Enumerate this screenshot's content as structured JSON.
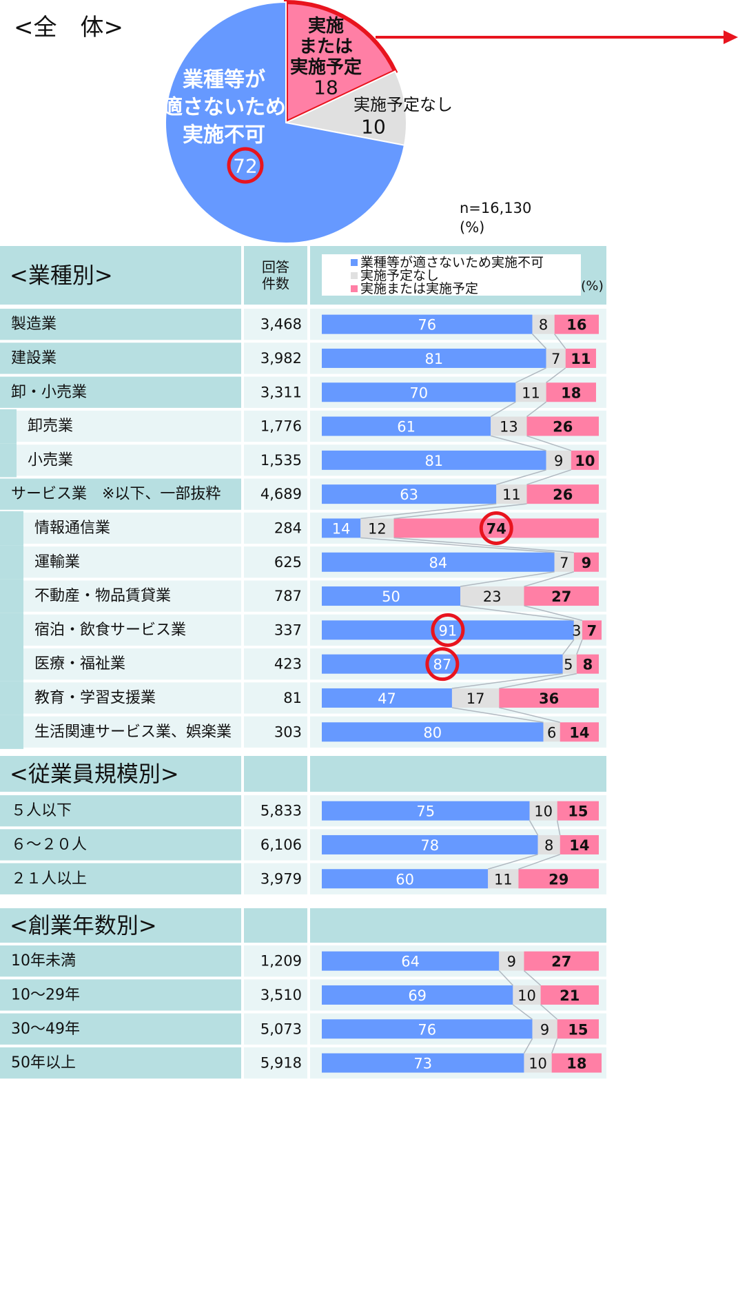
{
  "colors": {
    "blue": "#6699ff",
    "gray": "#e0e0e0",
    "pink": "#ff7fa5",
    "highlight": "#e8141e",
    "band": "#b7dfe1",
    "band_light": "#e9f5f6",
    "connector": "#b0b8c0"
  },
  "overall": {
    "title": "<全　体>",
    "n_label": "n=16,130",
    "unit": "(%)",
    "slices": [
      {
        "label": "業種等が\n適さないため\n実施不可",
        "value": 72,
        "color_key": "blue",
        "circled": true
      },
      {
        "label": "実施予定なし",
        "value": 10,
        "color_key": "gray",
        "circled": false
      },
      {
        "label": "実施\nまたは\n実施予定",
        "value": 18,
        "color_key": "pink",
        "circled": false
      }
    ]
  },
  "legend": {
    "items": [
      {
        "label": "業種等が適さないため実施不可",
        "color_key": "blue"
      },
      {
        "label": "実施予定なし",
        "color_key": "gray"
      },
      {
        "label": "実施または実施予定",
        "color_key": "pink"
      }
    ],
    "unit": "(%)"
  },
  "chart_data": {
    "type": "bar",
    "stacked": true,
    "orientation": "horizontal",
    "series": [
      {
        "name": "業種等が適さないため実施不可"
      },
      {
        "name": "実施予定なし"
      },
      {
        "name": "実施または実施予定"
      }
    ],
    "xlim": [
      0,
      100
    ],
    "sections": [
      {
        "title": "<業種別>",
        "count_header": "回答\n件数",
        "rows": [
          {
            "label": "製造業",
            "count": "3,468",
            "values": [
              76,
              8,
              16
            ],
            "indent": 0
          },
          {
            "label": "建設業",
            "count": "3,982",
            "values": [
              81,
              7,
              11
            ],
            "indent": 0
          },
          {
            "label": "卸・小売業",
            "count": "3,311",
            "values": [
              70,
              11,
              18
            ],
            "indent": 0
          },
          {
            "label": "卸売業",
            "count": "1,776",
            "values": [
              61,
              13,
              26
            ],
            "indent": 1
          },
          {
            "label": "小売業",
            "count": "1,535",
            "values": [
              81,
              9,
              10
            ],
            "indent": 1
          },
          {
            "label": "サービス業　※以下、一部抜粋",
            "count": "4,689",
            "values": [
              63,
              11,
              26
            ],
            "indent": 0
          },
          {
            "label": "情報通信業",
            "count": "284",
            "values": [
              14,
              12,
              74
            ],
            "indent": 2,
            "circle": 2
          },
          {
            "label": "運輸業",
            "count": "625",
            "values": [
              84,
              7,
              9
            ],
            "indent": 2
          },
          {
            "label": "不動産・物品賃貸業",
            "count": "787",
            "values": [
              50,
              23,
              27
            ],
            "indent": 2
          },
          {
            "label": "宿泊・飲食サービス業",
            "count": "337",
            "values": [
              91,
              3,
              7
            ],
            "indent": 2,
            "circle": 0
          },
          {
            "label": "医療・福祉業",
            "count": "423",
            "values": [
              87,
              5,
              8
            ],
            "indent": 2,
            "circle": 0
          },
          {
            "label": "教育・学習支援業",
            "count": "81",
            "values": [
              47,
              17,
              36
            ],
            "indent": 2
          },
          {
            "label": "生活関連サービス業、娯楽業",
            "count": "303",
            "values": [
              80,
              6,
              14
            ],
            "indent": 2
          }
        ]
      },
      {
        "title": "<従業員規模別>",
        "rows": [
          {
            "label": "５人以下",
            "count": "5,833",
            "values": [
              75,
              10,
              15
            ],
            "indent": 0
          },
          {
            "label": "６～２０人",
            "count": "6,106",
            "values": [
              78,
              8,
              14
            ],
            "indent": 0
          },
          {
            "label": "２１人以上",
            "count": "3,979",
            "values": [
              60,
              11,
              29
            ],
            "indent": 0
          }
        ]
      },
      {
        "title": "<創業年数別>",
        "rows": [
          {
            "label": "10年未満",
            "count": "1,209",
            "values": [
              64,
              9,
              27
            ],
            "indent": 0
          },
          {
            "label": "10～29年",
            "count": "3,510",
            "values": [
              69,
              10,
              21
            ],
            "indent": 0
          },
          {
            "label": "30～49年",
            "count": "5,073",
            "values": [
              76,
              9,
              15
            ],
            "indent": 0
          },
          {
            "label": "50年以上",
            "count": "5,918",
            "values": [
              73,
              10,
              18
            ],
            "indent": 0
          }
        ]
      }
    ]
  }
}
